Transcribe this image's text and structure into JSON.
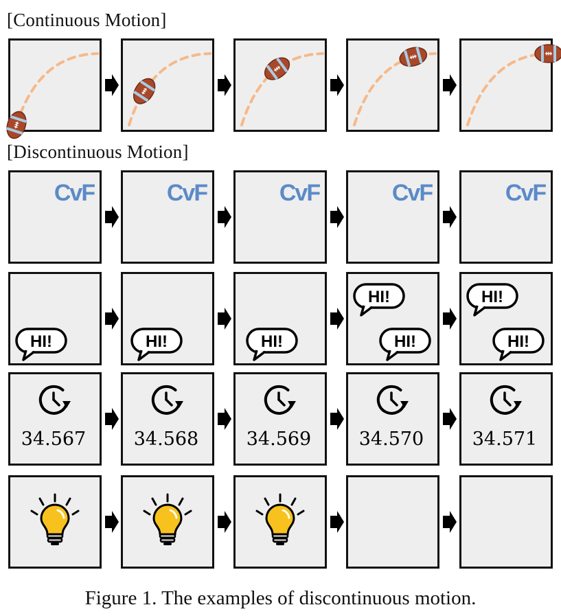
{
  "sections": {
    "continuous_label": "[Continuous Motion]",
    "discontinuous_label": "[Discontinuous Motion]"
  },
  "rows": [
    {
      "name": "football",
      "frames": [
        {
          "ball": true,
          "trail": 0.0,
          "ball_t": 0.0
        },
        {
          "ball": true,
          "trail": 0.25,
          "ball_t": 0.28
        },
        {
          "ball": true,
          "trail": 0.5,
          "ball_t": 0.55
        },
        {
          "ball": true,
          "trail": 0.75,
          "ball_t": 0.8
        },
        {
          "ball": true,
          "trail": 1.0,
          "ball_t": 1.0
        }
      ]
    },
    {
      "name": "cvf-logo",
      "logo_text": "CvF",
      "logo_color": "#5b8ac8",
      "frames": [
        1,
        1,
        1,
        1,
        1
      ]
    },
    {
      "name": "speech-bubbles",
      "bubble_text": "HI!",
      "frames": [
        {
          "bubbles": [
            "bottom"
          ]
        },
        {
          "bubbles": [
            "bottom"
          ]
        },
        {
          "bubbles": [
            "bottom"
          ]
        },
        {
          "bubbles": [
            "top",
            "bottom"
          ]
        },
        {
          "bubbles": [
            "top",
            "bottom"
          ]
        }
      ]
    },
    {
      "name": "timer",
      "values": [
        "34.567",
        "34.568",
        "34.569",
        "34.570",
        "34.571"
      ]
    },
    {
      "name": "lightbulb",
      "bulb_color": "#f7c21e",
      "frames": [
        true,
        true,
        true,
        false,
        false
      ]
    }
  ],
  "colors": {
    "frame_fill": "#eeeeee",
    "frame_stroke": "#111111",
    "ball": "#a8482a",
    "ball_stripe": "#a9cbe3",
    "trail": "#f5b98b"
  },
  "caption": "Figure 1. The examples of discontinuous motion."
}
